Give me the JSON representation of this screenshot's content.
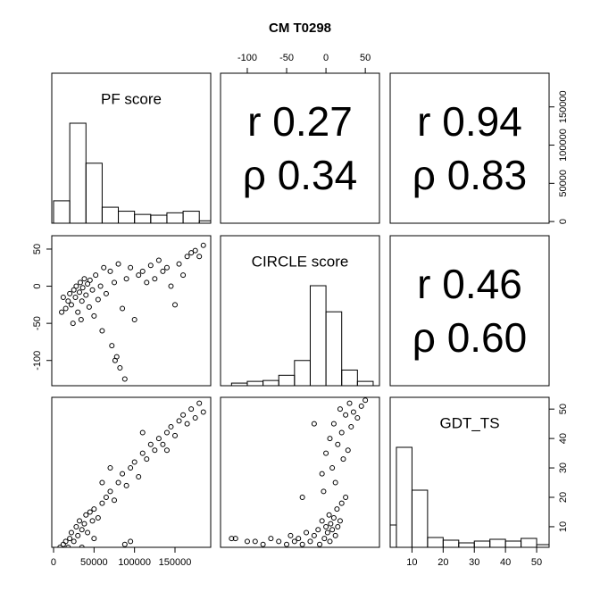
{
  "chart_data": {
    "type": "pairs",
    "title": "CM T0298",
    "variables": [
      {
        "name": "PF score",
        "lim": [
          -2200,
          194100
        ],
        "ticks": [
          0,
          50000,
          100000,
          150000
        ]
      },
      {
        "name": "CIRCLE score",
        "lim": [
          -134,
          68
        ],
        "ticks": [
          -100,
          -50,
          0,
          50
        ]
      },
      {
        "name": "GDT_TS",
        "lim": [
          3,
          54
        ],
        "ticks": [
          10,
          20,
          30,
          40,
          50
        ]
      }
    ],
    "histograms": [
      {
        "bins": [
          0,
          20000,
          40000,
          60000,
          80000,
          100000,
          120000,
          140000,
          160000,
          180000,
          200000
        ],
        "counts": [
          28,
          125,
          75,
          20,
          15,
          11,
          10,
          13,
          15,
          3
        ]
      },
      {
        "bins": [
          -120,
          -100,
          -80,
          -60,
          -40,
          -20,
          0,
          20,
          40,
          60
        ],
        "counts": [
          3,
          5,
          6,
          12,
          29,
          115,
          85,
          18,
          5
        ]
      },
      {
        "bins": [
          0,
          5,
          10,
          15,
          20,
          25,
          30,
          35,
          40,
          45,
          50,
          55
        ],
        "counts": [
          25,
          112,
          64,
          11,
          8,
          5,
          7,
          9,
          7,
          10,
          3
        ]
      }
    ],
    "correlations": [
      {
        "r": 0.27,
        "rho": 0.34,
        "value_labels": [
          "r 0.27",
          "ρ 0.34"
        ]
      },
      {
        "r": 0.94,
        "rho": 0.83,
        "value_labels": [
          "r 0.94",
          "ρ 0.83"
        ]
      },
      {
        "r": 0.46,
        "rho": 0.6,
        "value_labels": [
          "r 0.46",
          "ρ 0.60"
        ]
      }
    ],
    "scatter": [
      {
        "x": [
          15000,
          18000,
          20000,
          22000,
          25000,
          27000,
          28000,
          30000,
          32000,
          33000,
          35000,
          36000,
          38000,
          40000,
          42000,
          44000,
          45000,
          48000,
          50000,
          52000,
          55000,
          58000,
          60000,
          62000,
          65000,
          70000,
          72000,
          75000,
          80000,
          85000,
          90000,
          95000,
          100000,
          105000,
          110000,
          115000,
          120000,
          125000,
          130000,
          135000,
          140000,
          145000,
          150000,
          155000,
          160000,
          165000,
          170000,
          175000,
          180000,
          185000,
          78000,
          82000,
          88000,
          76000,
          10000,
          12000,
          24000,
          34000
        ],
        "y": [
          -30,
          -20,
          -10,
          -25,
          -5,
          -15,
          0,
          -35,
          -8,
          5,
          -20,
          -2,
          10,
          -12,
          3,
          -28,
          8,
          -5,
          -40,
          15,
          -18,
          0,
          -60,
          25,
          -10,
          20,
          -80,
          5,
          30,
          -30,
          10,
          25,
          -45,
          15,
          20,
          5,
          28,
          10,
          35,
          20,
          25,
          0,
          -25,
          30,
          15,
          40,
          45,
          48,
          40,
          55,
          -95,
          -110,
          -125,
          -100,
          -35,
          -15,
          -50,
          -45
        ]
      },
      {
        "x": [
          8000,
          12000,
          15000,
          18000,
          20000,
          22000,
          25000,
          28000,
          30000,
          32000,
          35000,
          38000,
          40000,
          42000,
          45000,
          48000,
          50000,
          55000,
          60000,
          65000,
          70000,
          75000,
          80000,
          85000,
          90000,
          95000,
          100000,
          105000,
          110000,
          115000,
          120000,
          125000,
          130000,
          135000,
          140000,
          145000,
          150000,
          155000,
          160000,
          165000,
          170000,
          175000,
          180000,
          185000,
          88000,
          95000,
          60000,
          70000,
          110000,
          140000,
          35000,
          50000
        ],
        "y": [
          3,
          4,
          5,
          3,
          6,
          8,
          5,
          10,
          7,
          12,
          9,
          11,
          14,
          8,
          15,
          12,
          16,
          13,
          18,
          20,
          22,
          19,
          25,
          28,
          24,
          30,
          32,
          27,
          35,
          33,
          38,
          36,
          40,
          38,
          42,
          44,
          41,
          46,
          48,
          45,
          50,
          47,
          52,
          49,
          4,
          5,
          25,
          30,
          42,
          36,
          3,
          6
        ]
      },
      {
        "x": [
          -120,
          -115,
          -100,
          -90,
          -80,
          -70,
          -60,
          -50,
          -45,
          -40,
          -35,
          -30,
          -25,
          -20,
          -15,
          -10,
          -8,
          -5,
          -2,
          0,
          2,
          4,
          5,
          6,
          8,
          10,
          12,
          14,
          15,
          18,
          20,
          -5,
          0,
          5,
          8,
          10,
          12,
          15,
          18,
          20,
          22,
          25,
          28,
          30,
          32,
          35,
          40,
          45,
          50,
          -30,
          -15,
          -3,
          25
        ],
        "y": [
          6,
          6,
          5,
          5,
          4,
          6,
          5,
          4,
          7,
          5,
          6,
          4,
          8,
          5,
          7,
          9,
          4,
          12,
          6,
          10,
          8,
          14,
          5,
          11,
          9,
          13,
          7,
          16,
          10,
          12,
          18,
          28,
          35,
          40,
          30,
          45,
          25,
          38,
          50,
          42,
          33,
          48,
          36,
          52,
          44,
          49,
          47,
          51,
          53,
          20,
          45,
          22,
          20
        ]
      }
    ]
  }
}
